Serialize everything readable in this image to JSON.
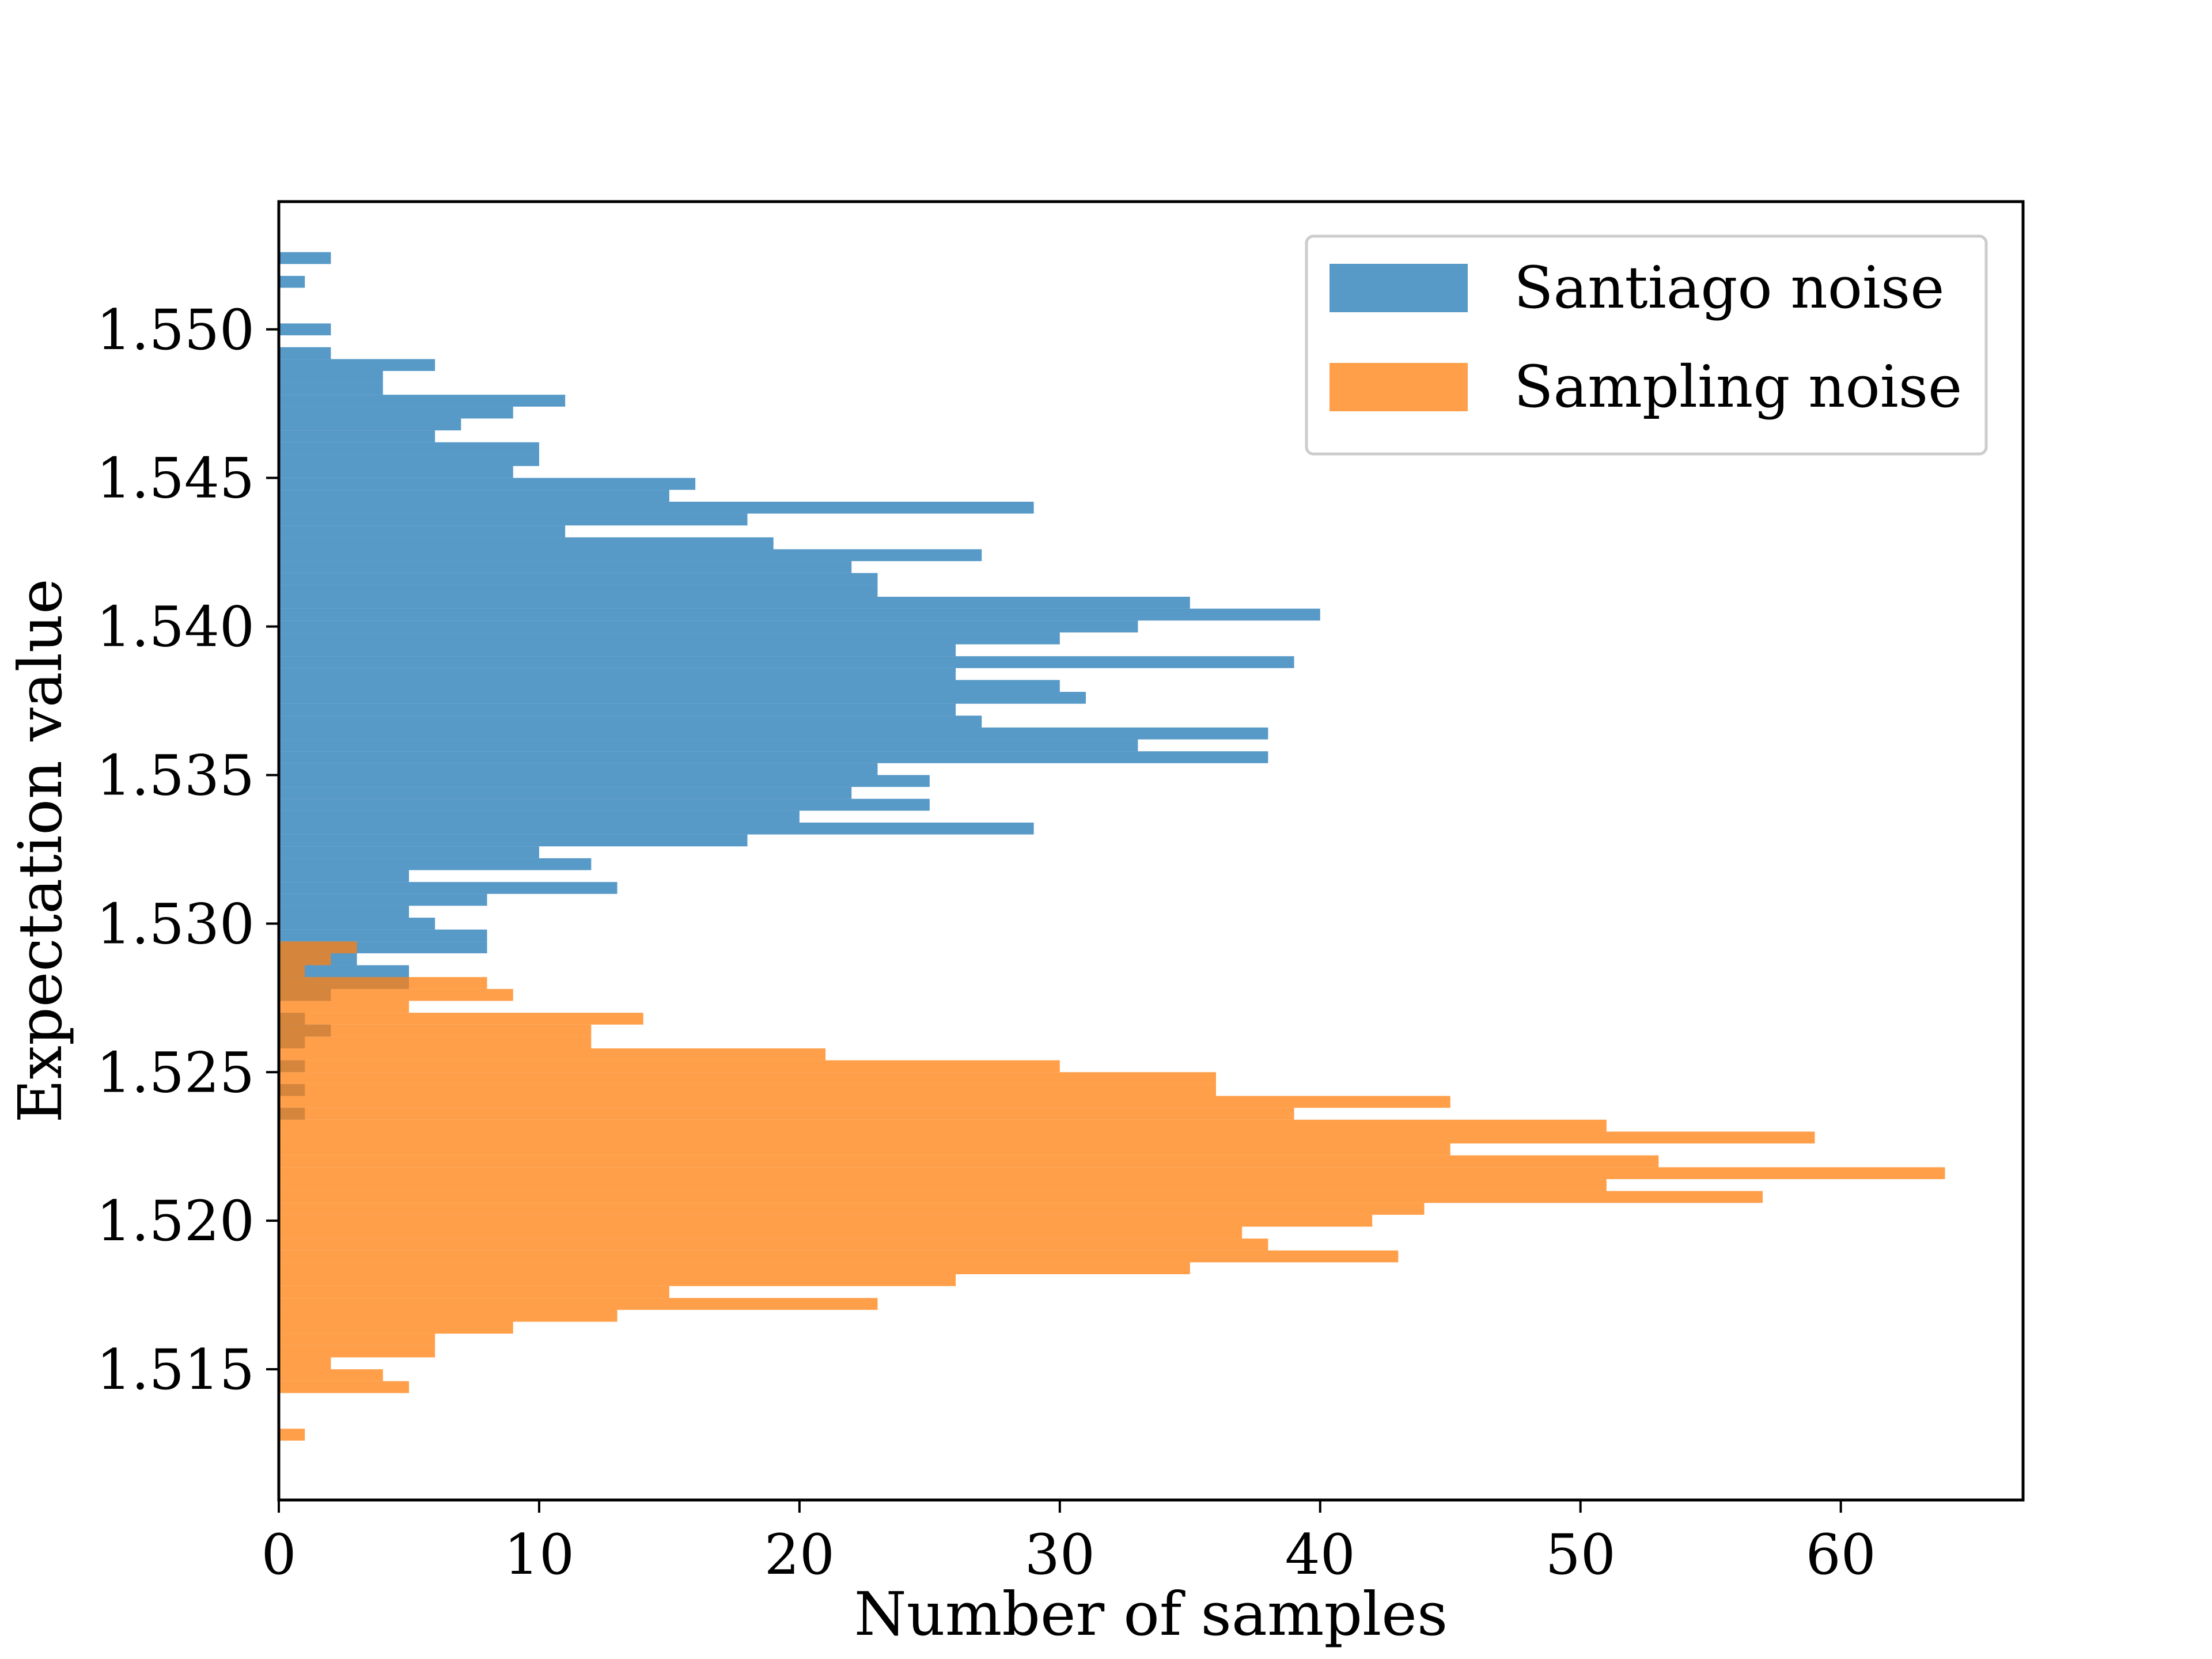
{
  "chart_data": {
    "type": "bar",
    "orientation": "horizontal-histogram",
    "title": "",
    "xlabel": "Number of samples",
    "ylabel": "Expectation value",
    "xlim": [
      0,
      67
    ],
    "ylim": [
      1.5106,
      1.5543
    ],
    "bin_width": 0.0004,
    "x_ticks": [
      0,
      10,
      20,
      30,
      40,
      50,
      60
    ],
    "x_tick_labels": [
      "0",
      "10",
      "20",
      "30",
      "40",
      "50",
      "60"
    ],
    "y_ticks": [
      1.515,
      1.52,
      1.525,
      1.53,
      1.535,
      1.54,
      1.545,
      1.55
    ],
    "y_tick_labels": [
      "1.515",
      "1.520",
      "1.525",
      "1.530",
      "1.535",
      "1.540",
      "1.545",
      "1.550"
    ],
    "grid": false,
    "legend_position": "top-right",
    "series": [
      {
        "name": "Santiago noise",
        "color": "#1f77b4",
        "opacity": 0.75,
        "bins": [
          {
            "y": 1.5522,
            "count": 2
          },
          {
            "y": 1.5514,
            "count": 1
          },
          {
            "y": 1.5498,
            "count": 2
          },
          {
            "y": 1.549,
            "count": 2
          },
          {
            "y": 1.5486,
            "count": 6
          },
          {
            "y": 1.5482,
            "count": 4
          },
          {
            "y": 1.5478,
            "count": 4
          },
          {
            "y": 1.5474,
            "count": 11
          },
          {
            "y": 1.547,
            "count": 9
          },
          {
            "y": 1.5466,
            "count": 7
          },
          {
            "y": 1.5462,
            "count": 6
          },
          {
            "y": 1.5458,
            "count": 10
          },
          {
            "y": 1.5454,
            "count": 10
          },
          {
            "y": 1.545,
            "count": 9
          },
          {
            "y": 1.5446,
            "count": 16
          },
          {
            "y": 1.5442,
            "count": 15
          },
          {
            "y": 1.5438,
            "count": 29
          },
          {
            "y": 1.5434,
            "count": 18
          },
          {
            "y": 1.543,
            "count": 11
          },
          {
            "y": 1.5426,
            "count": 19
          },
          {
            "y": 1.5422,
            "count": 27
          },
          {
            "y": 1.5418,
            "count": 22
          },
          {
            "y": 1.5414,
            "count": 23
          },
          {
            "y": 1.541,
            "count": 23
          },
          {
            "y": 1.5406,
            "count": 35
          },
          {
            "y": 1.5402,
            "count": 40
          },
          {
            "y": 1.5398,
            "count": 33
          },
          {
            "y": 1.5394,
            "count": 30
          },
          {
            "y": 1.539,
            "count": 26
          },
          {
            "y": 1.5386,
            "count": 39
          },
          {
            "y": 1.5382,
            "count": 26
          },
          {
            "y": 1.5378,
            "count": 30
          },
          {
            "y": 1.5374,
            "count": 31
          },
          {
            "y": 1.537,
            "count": 26
          },
          {
            "y": 1.5366,
            "count": 27
          },
          {
            "y": 1.5362,
            "count": 38
          },
          {
            "y": 1.5358,
            "count": 33
          },
          {
            "y": 1.5354,
            "count": 38
          },
          {
            "y": 1.535,
            "count": 23
          },
          {
            "y": 1.5346,
            "count": 25
          },
          {
            "y": 1.5342,
            "count": 22
          },
          {
            "y": 1.5338,
            "count": 25
          },
          {
            "y": 1.5334,
            "count": 20
          },
          {
            "y": 1.533,
            "count": 29
          },
          {
            "y": 1.5326,
            "count": 18
          },
          {
            "y": 1.5322,
            "count": 10
          },
          {
            "y": 1.5318,
            "count": 12
          },
          {
            "y": 1.5314,
            "count": 5
          },
          {
            "y": 1.531,
            "count": 13
          },
          {
            "y": 1.5306,
            "count": 8
          },
          {
            "y": 1.5302,
            "count": 5
          },
          {
            "y": 1.5298,
            "count": 6
          },
          {
            "y": 1.5294,
            "count": 8
          },
          {
            "y": 1.529,
            "count": 8
          },
          {
            "y": 1.5286,
            "count": 3
          },
          {
            "y": 1.5282,
            "count": 5
          },
          {
            "y": 1.5278,
            "count": 5
          },
          {
            "y": 1.5274,
            "count": 2
          },
          {
            "y": 1.5266,
            "count": 1
          },
          {
            "y": 1.5262,
            "count": 2
          },
          {
            "y": 1.5258,
            "count": 1
          },
          {
            "y": 1.525,
            "count": 1
          },
          {
            "y": 1.5242,
            "count": 1
          },
          {
            "y": 1.5234,
            "count": 1
          }
        ]
      },
      {
        "name": "Sampling noise",
        "color": "#ff7f0e",
        "opacity": 0.75,
        "bins": [
          {
            "y": 1.529,
            "count": 3
          },
          {
            "y": 1.5286,
            "count": 2
          },
          {
            "y": 1.5282,
            "count": 1
          },
          {
            "y": 1.5278,
            "count": 8
          },
          {
            "y": 1.5274,
            "count": 9
          },
          {
            "y": 1.527,
            "count": 5
          },
          {
            "y": 1.5266,
            "count": 14
          },
          {
            "y": 1.5262,
            "count": 12
          },
          {
            "y": 1.5258,
            "count": 12
          },
          {
            "y": 1.5254,
            "count": 21
          },
          {
            "y": 1.525,
            "count": 30
          },
          {
            "y": 1.5246,
            "count": 36
          },
          {
            "y": 1.5242,
            "count": 36
          },
          {
            "y": 1.5238,
            "count": 45
          },
          {
            "y": 1.5234,
            "count": 39
          },
          {
            "y": 1.523,
            "count": 51
          },
          {
            "y": 1.5226,
            "count": 59
          },
          {
            "y": 1.5222,
            "count": 45
          },
          {
            "y": 1.5218,
            "count": 53
          },
          {
            "y": 1.5214,
            "count": 64
          },
          {
            "y": 1.521,
            "count": 51
          },
          {
            "y": 1.5206,
            "count": 57
          },
          {
            "y": 1.5202,
            "count": 44
          },
          {
            "y": 1.5198,
            "count": 42
          },
          {
            "y": 1.5194,
            "count": 37
          },
          {
            "y": 1.519,
            "count": 38
          },
          {
            "y": 1.5186,
            "count": 43
          },
          {
            "y": 1.5182,
            "count": 35
          },
          {
            "y": 1.5178,
            "count": 26
          },
          {
            "y": 1.5174,
            "count": 15
          },
          {
            "y": 1.517,
            "count": 23
          },
          {
            "y": 1.5166,
            "count": 13
          },
          {
            "y": 1.5162,
            "count": 9
          },
          {
            "y": 1.5158,
            "count": 6
          },
          {
            "y": 1.5154,
            "count": 6
          },
          {
            "y": 1.515,
            "count": 2
          },
          {
            "y": 1.5146,
            "count": 4
          },
          {
            "y": 1.5142,
            "count": 5
          },
          {
            "y": 1.5126,
            "count": 1
          }
        ]
      }
    ]
  }
}
